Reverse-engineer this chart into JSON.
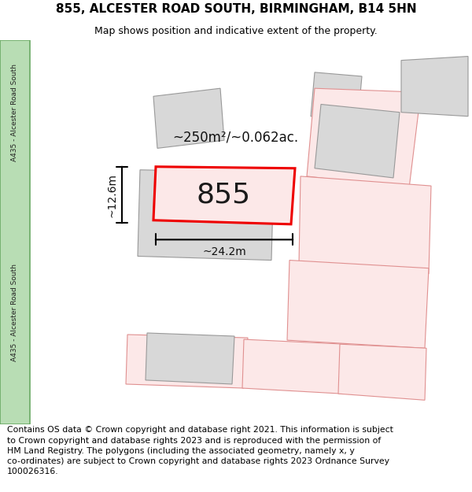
{
  "title_line1": "855, ALCESTER ROAD SOUTH, BIRMINGHAM, B14 5HN",
  "title_line2": "Map shows position and indicative extent of the property.",
  "footer": "Contains OS data © Crown copyright and database right 2021. This information is subject\nto Crown copyright and database rights 2023 and is reproduced with the permission of\nHM Land Registry. The polygons (including the associated geometry, namely x, y\nco-ordinates) are subject to Crown copyright and database rights 2023 Ordnance Survey\n100026316.",
  "road_label": "A435 - Alcester Road South",
  "road_color": "#b8ddb4",
  "road_border_color": "#6aaa64",
  "map_bg": "#ffffff",
  "building_fill": "#d8d8d8",
  "building_edge": "#999999",
  "neighbor_fill": "#fce8e8",
  "neighbor_edge": "#e09090",
  "main_fill": "#fce8e8",
  "main_edge": "#ee0000",
  "main_label": "855",
  "area_label": "~250m²/~0.062ac.",
  "dim_h_label": "~12.6m",
  "dim_w_label": "~24.2m",
  "title_fontsize": 11,
  "subtitle_fontsize": 9,
  "footer_fontsize": 7.8,
  "road_label_fontsize": 6.5,
  "main_label_fontsize": 26,
  "area_fontsize": 12,
  "dim_fontsize": 10
}
